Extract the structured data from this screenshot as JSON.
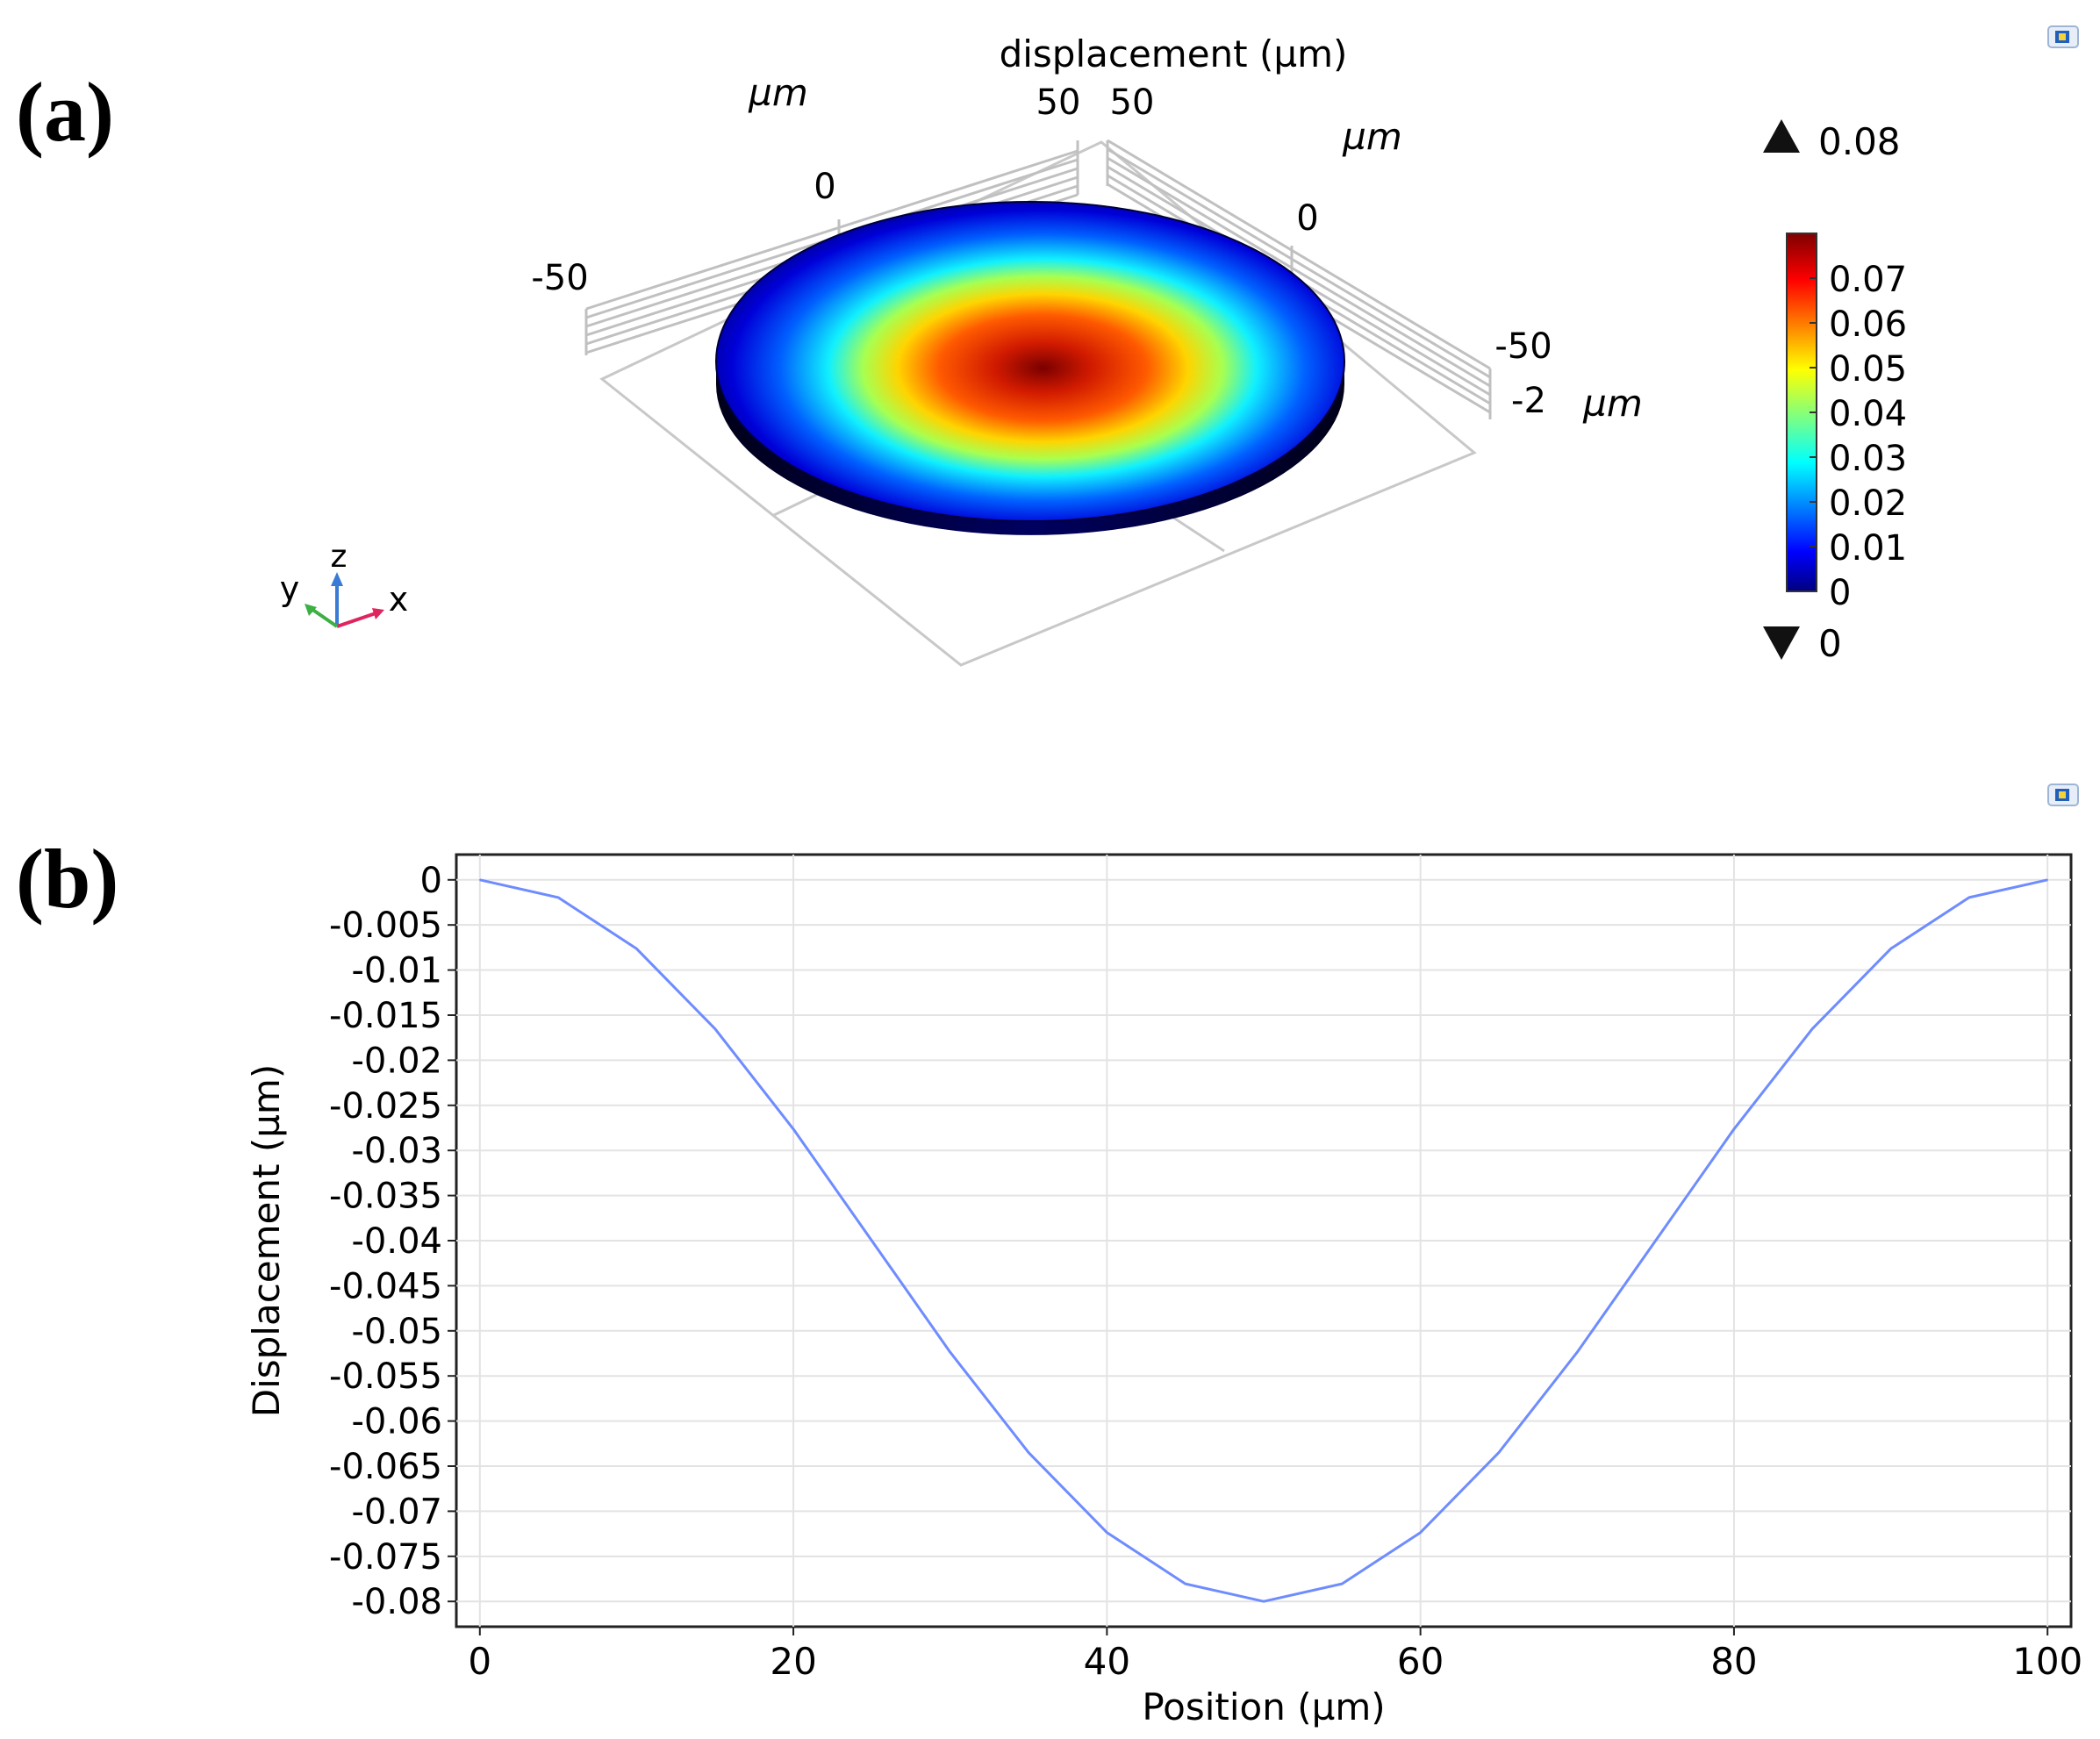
{
  "chart_data": [
    {
      "panel_label": "(a)",
      "type": "heatmap",
      "title": "displacement (µm)",
      "description_type": "3D surface plot",
      "x_axis": {
        "unit_label": "µm",
        "ticks": [
          "-50",
          "0",
          "50"
        ]
      },
      "y_axis": {
        "unit_label": "µm",
        "ticks": [
          "50",
          "0",
          "-50"
        ]
      },
      "z_axis": {
        "unit_label": "µm",
        "ticks": [
          "-2"
        ]
      },
      "colorbar": {
        "ticks": [
          "0.07",
          "0.06",
          "0.05",
          "0.04",
          "0.03",
          "0.02",
          "0.01",
          "0"
        ],
        "max_label": "0.08",
        "min_label": "0",
        "range": [
          0,
          0.08
        ],
        "colormap": [
          "#00007f",
          "#0000ff",
          "#00ffff",
          "#ffff00",
          "#ff0000",
          "#7f0000"
        ]
      },
      "surface": {
        "shape": "disk",
        "max_value": 0.08,
        "min_value": 0
      },
      "triad": {
        "x": "x",
        "y": "y",
        "z": "z",
        "colors": {
          "x": "#e0245e",
          "y": "#3cb043",
          "z": "#3a7bd5"
        }
      }
    },
    {
      "panel_label": "(b)",
      "type": "line",
      "title": "",
      "xlabel": "Position (µm)",
      "ylabel": "Displacement (µm)",
      "xlim": [
        -1.5,
        101.5
      ],
      "ylim": [
        -0.0828,
        0.0028
      ],
      "x_ticks": [
        "0",
        "20",
        "40",
        "60",
        "80",
        "100"
      ],
      "y_ticks": [
        "0",
        "-0.005",
        "-0.01",
        "-0.015",
        "-0.02",
        "-0.025",
        "-0.03",
        "-0.035",
        "-0.04",
        "-0.045",
        "-0.05",
        "-0.055",
        "-0.06",
        "-0.065",
        "-0.07",
        "-0.075",
        "-0.08"
      ],
      "grid": true,
      "series": [
        {
          "name": "displacement",
          "color": "#6f8cff",
          "x": [
            0,
            5,
            10,
            15,
            20,
            25,
            30,
            35,
            40,
            45,
            50,
            55,
            60,
            65,
            70,
            75,
            80,
            85,
            90,
            95,
            100
          ],
          "y": [
            0,
            -0.00196,
            -0.00764,
            -0.01652,
            -0.02764,
            -0.04,
            -0.05236,
            -0.06348,
            -0.07236,
            -0.07804,
            -0.08,
            -0.07804,
            -0.07236,
            -0.06348,
            -0.05236,
            -0.04,
            -0.02764,
            -0.01652,
            -0.00764,
            -0.00196,
            0
          ]
        }
      ]
    }
  ]
}
